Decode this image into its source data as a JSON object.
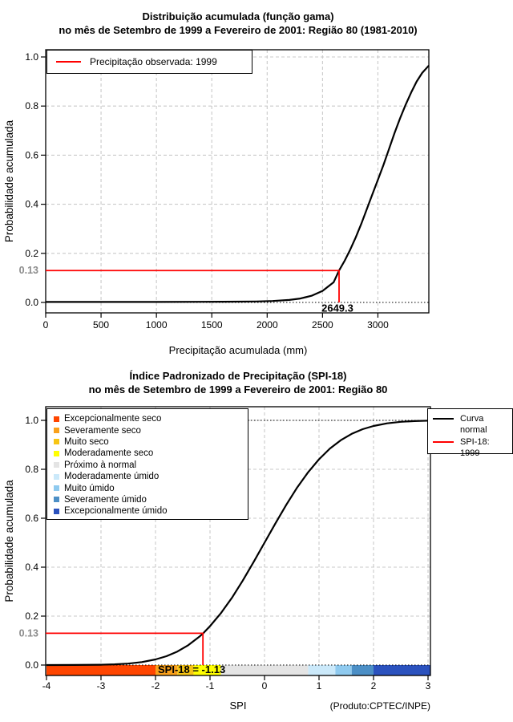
{
  "colors": {
    "highlight_red": "#FF0000",
    "curve_black": "#000000",
    "grid_grey": "#C9C9C9",
    "grey_label": "#8C8C8C"
  },
  "chart_data": [
    {
      "type": "line",
      "id": "gamma_cumulative_distribution",
      "title": "Distribuição acumulada (função gama)",
      "subtitle": "no mês de Setembro de 1999 a Fevereiro de 2001: Região 80 (1981-2010)",
      "xlabel": "Precipitação acumulada (mm)",
      "ylabel": "Probabilidade acumulada",
      "xlim": [
        0,
        3460
      ],
      "ylim": [
        0,
        1
      ],
      "grid": true,
      "x_ticks": [
        0,
        500,
        1000,
        1500,
        2000,
        2500,
        3000
      ],
      "y_ticks": [
        "0.0",
        "0.2",
        "0.4",
        "0.6",
        "0.8",
        "1.0"
      ],
      "legend": [
        {
          "label": "Precipitação observada: 1999",
          "color": "#FF0000"
        }
      ],
      "highlight": {
        "x": 2649.3,
        "y": 0.13,
        "x_label": "2649.3",
        "y_label": "0.13"
      },
      "series": [
        {
          "name": "Distribuição gama acumulada",
          "color": "#000000",
          "points": [
            [
              0,
              0.002
            ],
            [
              1000,
              0.002
            ],
            [
              1600,
              0.003
            ],
            [
              1900,
              0.004
            ],
            [
              2050,
              0.006
            ],
            [
              2200,
              0.01
            ],
            [
              2300,
              0.016
            ],
            [
              2400,
              0.027
            ],
            [
              2500,
              0.047
            ],
            [
              2600,
              0.082
            ],
            [
              2649.3,
              0.13
            ],
            [
              2700,
              0.17
            ],
            [
              2750,
              0.215
            ],
            [
              2800,
              0.265
            ],
            [
              2850,
              0.32
            ],
            [
              2900,
              0.38
            ],
            [
              2950,
              0.44
            ],
            [
              3000,
              0.5
            ],
            [
              3050,
              0.56
            ],
            [
              3100,
              0.625
            ],
            [
              3150,
              0.69
            ],
            [
              3200,
              0.75
            ],
            [
              3250,
              0.805
            ],
            [
              3300,
              0.855
            ],
            [
              3350,
              0.9
            ],
            [
              3400,
              0.935
            ],
            [
              3440,
              0.955
            ],
            [
              3460,
              0.965
            ]
          ]
        }
      ]
    },
    {
      "type": "line",
      "id": "spi18_standardized_precipitation_index",
      "title": "Índice Padronizado de Precipitação (SPI-18)",
      "subtitle": "no mês de Setembro de 1999 a Fevereiro de 2001: Região 80",
      "xlabel": "SPI",
      "ylabel": "Probabilidade acumulada",
      "xlim": [
        -4,
        3.05
      ],
      "ylim": [
        0,
        1
      ],
      "grid": true,
      "x_ticks": [
        -4,
        -3,
        -2,
        -1,
        0,
        1,
        2,
        3
      ],
      "y_ticks": [
        "0.0",
        "0.2",
        "0.4",
        "0.6",
        "0.8",
        "1.0"
      ],
      "legend_right": [
        {
          "label": "Curva normal",
          "color": "#000000"
        },
        {
          "label": "SPI-18: 1999",
          "color": "#FF0000"
        }
      ],
      "categories_legend": [
        {
          "label": "Excepcionalmente seco",
          "color": "#FF4500"
        },
        {
          "label": "Severamente seco",
          "color": "#F9A01B"
        },
        {
          "label": "Muito seco",
          "color": "#F7C514"
        },
        {
          "label": "Moderadamente seco",
          "color": "#FFFF00"
        },
        {
          "label": "Próximo à normal",
          "color": "#E4E4E4"
        },
        {
          "label": "Moderadamente úmido",
          "color": "#CBE9FA"
        },
        {
          "label": "Muito úmido",
          "color": "#8FCAEF"
        },
        {
          "label": "Severamente úmido",
          "color": "#4C8FC6"
        },
        {
          "label": "Excepcionalmente úmido",
          "color": "#2B52BE"
        }
      ],
      "colorbar": {
        "boundaries": [
          -4,
          -2,
          -1.6,
          -1.3,
          -0.8,
          0.8,
          1.3,
          1.6,
          2,
          3.05
        ],
        "colors": [
          "#FF4500",
          "#F9A01B",
          "#F7C514",
          "#FFFF00",
          "#E4E4E4",
          "#CBE9FA",
          "#8FCAEF",
          "#4C8FC6",
          "#2B52BE"
        ]
      },
      "annotation": "SPI-18 = -1.13",
      "highlight": {
        "x": -1.13,
        "y": 0.13,
        "y_label": "0.13"
      },
      "footer": "(Produto:CPTEC/INPE)",
      "series": [
        {
          "name": "Curva normal",
          "color": "#000000",
          "points": [
            [
              -4,
              0.0001
            ],
            [
              -3.5,
              0.0003
            ],
            [
              -3,
              0.0013
            ],
            [
              -2.75,
              0.003
            ],
            [
              -2.5,
              0.006
            ],
            [
              -2.25,
              0.012
            ],
            [
              -2,
              0.023
            ],
            [
              -1.8,
              0.036
            ],
            [
              -1.6,
              0.055
            ],
            [
              -1.4,
              0.081
            ],
            [
              -1.2,
              0.115
            ],
            [
              -1.13,
              0.129
            ],
            [
              -1,
              0.159
            ],
            [
              -0.8,
              0.212
            ],
            [
              -0.6,
              0.274
            ],
            [
              -0.4,
              0.345
            ],
            [
              -0.2,
              0.421
            ],
            [
              0,
              0.5
            ],
            [
              0.2,
              0.579
            ],
            [
              0.4,
              0.655
            ],
            [
              0.6,
              0.726
            ],
            [
              0.8,
              0.788
            ],
            [
              1,
              0.841
            ],
            [
              1.2,
              0.885
            ],
            [
              1.4,
              0.919
            ],
            [
              1.6,
              0.945
            ],
            [
              1.8,
              0.964
            ],
            [
              2,
              0.977
            ],
            [
              2.25,
              0.988
            ],
            [
              2.5,
              0.994
            ],
            [
              2.75,
              0.997
            ],
            [
              3.04,
              0.999
            ]
          ]
        }
      ]
    }
  ]
}
